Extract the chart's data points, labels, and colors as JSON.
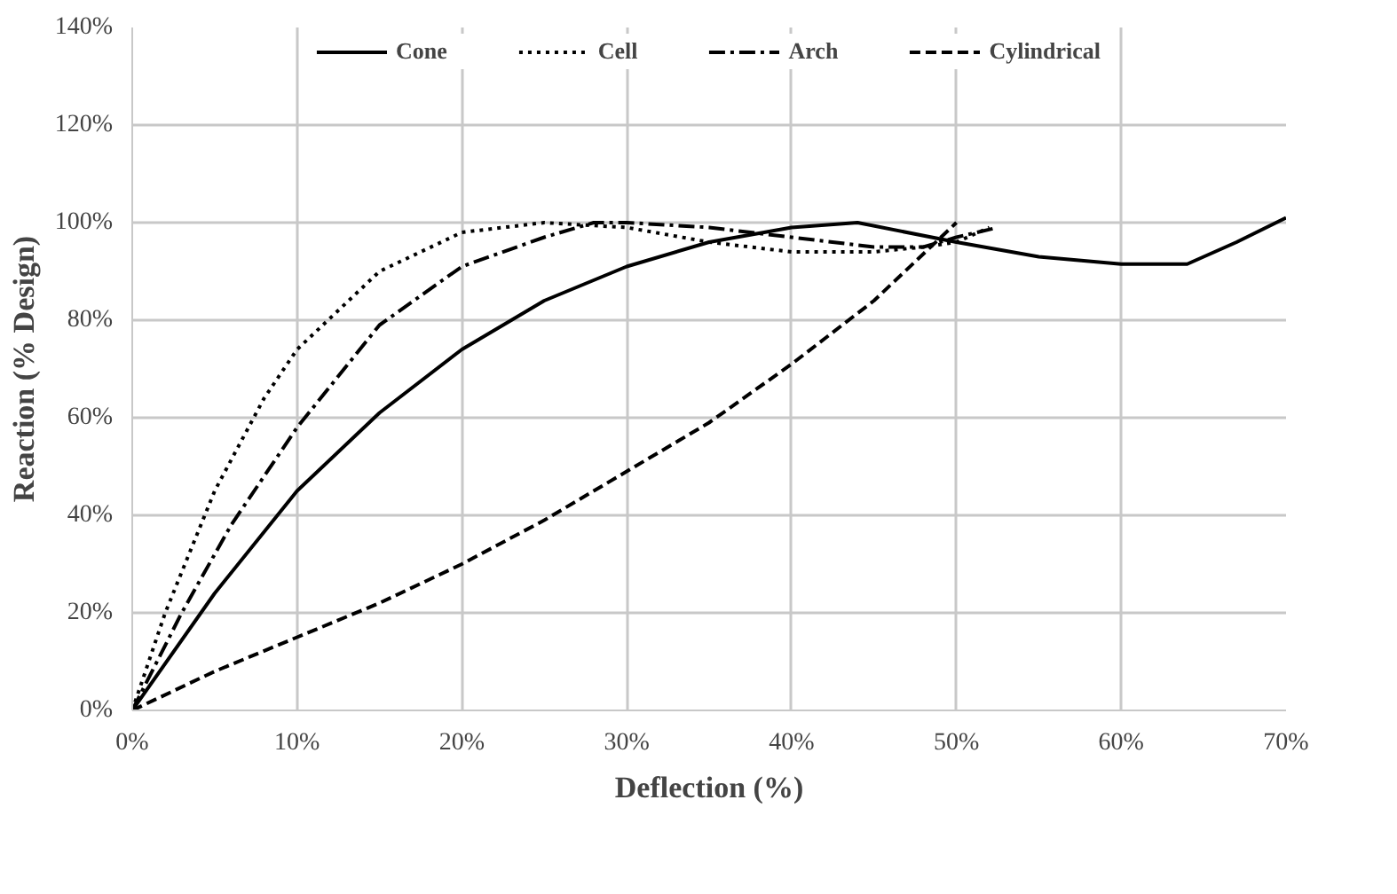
{
  "chart_data": {
    "type": "line",
    "xlabel": "Deflection (%)",
    "ylabel": "Reaction (% Design)",
    "xlim": [
      0,
      70
    ],
    "ylim": [
      0,
      140
    ],
    "xticks": [
      {
        "value": 0,
        "label": "0%"
      },
      {
        "value": 10,
        "label": "10%"
      },
      {
        "value": 20,
        "label": "20%"
      },
      {
        "value": 30,
        "label": "30%"
      },
      {
        "value": 40,
        "label": "40%"
      },
      {
        "value": 50,
        "label": "50%"
      },
      {
        "value": 60,
        "label": "60%"
      },
      {
        "value": 70,
        "label": "70%"
      }
    ],
    "yticks": [
      {
        "value": 0,
        "label": "0%"
      },
      {
        "value": 20,
        "label": "20%"
      },
      {
        "value": 40,
        "label": "40%"
      },
      {
        "value": 60,
        "label": "60%"
      },
      {
        "value": 80,
        "label": "80%"
      },
      {
        "value": 100,
        "label": "100%"
      },
      {
        "value": 120,
        "label": "120%"
      },
      {
        "value": 140,
        "label": "140%"
      }
    ],
    "grid": true,
    "legend": "top",
    "marker": "none",
    "series": [
      {
        "name": "Cone",
        "color": "#000000",
        "line_style": "solid",
        "x": [
          0,
          5,
          10,
          15,
          20,
          25,
          30,
          35,
          40,
          44,
          50,
          55,
          60,
          64,
          67,
          70
        ],
        "values": [
          0,
          24,
          45,
          61,
          74,
          84,
          91,
          96,
          99,
          100,
          96,
          93,
          91.5,
          91.5,
          96,
          101
        ]
      },
      {
        "name": "Cell",
        "color": "#000000",
        "line_style": "dotted",
        "x": [
          0,
          2,
          5,
          8,
          10,
          15,
          20,
          25,
          30,
          35,
          40,
          45,
          48,
          50,
          52
        ],
        "values": [
          0,
          20,
          45,
          64,
          74,
          90,
          98,
          100,
          99,
          96,
          94,
          94,
          95,
          96,
          99
        ]
      },
      {
        "name": "Arch",
        "color": "#000000",
        "line_style": "dashdot",
        "x": [
          0,
          3,
          6,
          10,
          15,
          20,
          25,
          28,
          30,
          35,
          40,
          45,
          48,
          50,
          52.5
        ],
        "values": [
          0,
          20,
          38,
          58,
          79,
          91,
          97,
          100,
          100,
          99,
          97,
          95,
          95,
          97,
          99
        ]
      },
      {
        "name": "Cylindrical",
        "color": "#000000",
        "line_style": "dashed",
        "x": [
          0,
          5,
          10,
          15,
          20,
          25,
          30,
          35,
          40,
          45,
          50
        ],
        "values": [
          0,
          8,
          15,
          22,
          30,
          39,
          49,
          59,
          71,
          84,
          100
        ]
      }
    ]
  }
}
